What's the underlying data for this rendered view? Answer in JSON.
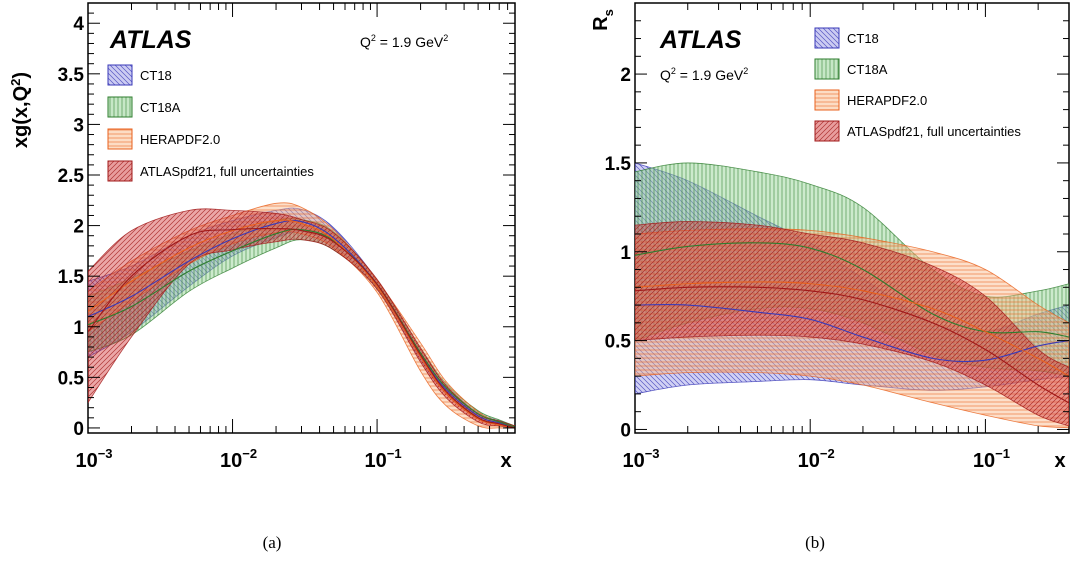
{
  "series_styles": [
    {
      "name": "CT18",
      "color": "#3a3ab8",
      "fill": "#9a9ae6",
      "pattern": "backslash"
    },
    {
      "name": "CT18A",
      "color": "#2e7d2e",
      "fill": "#8ed08e",
      "pattern": "vertical"
    },
    {
      "name": "HERAPDF2.0",
      "color": "#e8601c",
      "fill": "#f9b98a",
      "pattern": "horizontal"
    },
    {
      "name": "ATLASpdf21, full uncertainties",
      "color": "#a01818",
      "fill": "#d23c3c",
      "pattern": "slash"
    }
  ],
  "chart_data": [
    {
      "type": "area",
      "panel_label": "(a)",
      "experiment": "ATLAS",
      "q2_label": {
        "main": "Q",
        "sup1": "2",
        "mid": " = 1.9 GeV",
        "sup2": "2"
      },
      "ylabel": {
        "pre": "xg(x,Q",
        "sup": "2",
        "post": ")"
      },
      "xlabel": "x",
      "xscale": "log",
      "xlim": [
        0.001,
        0.9
      ],
      "ylim": [
        -0.05,
        4.2
      ],
      "yticks": [
        "0",
        "0.5",
        "1",
        "1.5",
        "2",
        "2.5",
        "3",
        "3.5",
        "4"
      ],
      "yticks_values": [
        0,
        0.5,
        1,
        1.5,
        2,
        2.5,
        3,
        3.5,
        4
      ],
      "xticks": [
        {
          "base": "10",
          "exp": "−3",
          "value": 0.001
        },
        {
          "base": "10",
          "exp": "−2",
          "value": 0.01
        },
        {
          "base": "10",
          "exp": "−1",
          "value": 0.1
        }
      ],
      "legend": [
        "CT18",
        "CT18A",
        "HERAPDF2.0",
        "ATLASpdf21, full uncertainties"
      ],
      "legend_position": "top-left",
      "x": [
        0.001,
        0.002,
        0.005,
        0.01,
        0.02,
        0.03,
        0.05,
        0.1,
        0.2,
        0.3,
        0.5,
        0.7,
        0.9
      ],
      "series": [
        {
          "name": "CT18",
          "center": [
            1.1,
            1.3,
            1.65,
            1.87,
            2.02,
            2.04,
            1.88,
            1.42,
            0.72,
            0.38,
            0.12,
            0.05,
            0.01
          ],
          "lower": [
            0.7,
            0.95,
            1.4,
            1.7,
            1.88,
            1.94,
            1.8,
            1.38,
            0.67,
            0.34,
            0.09,
            0.03,
            0.0
          ],
          "upper": [
            1.45,
            1.6,
            1.9,
            2.05,
            2.15,
            2.16,
            1.98,
            1.46,
            0.77,
            0.42,
            0.15,
            0.07,
            0.02
          ]
        },
        {
          "name": "CT18A",
          "center": [
            1.02,
            1.2,
            1.55,
            1.75,
            1.92,
            1.96,
            1.85,
            1.42,
            0.74,
            0.4,
            0.14,
            0.06,
            0.01
          ],
          "lower": [
            0.75,
            0.92,
            1.35,
            1.58,
            1.78,
            1.86,
            1.76,
            1.38,
            0.7,
            0.36,
            0.11,
            0.04,
            0.0
          ],
          "upper": [
            1.3,
            1.48,
            1.75,
            1.92,
            2.05,
            2.06,
            1.94,
            1.46,
            0.79,
            0.44,
            0.17,
            0.08,
            0.02
          ]
        },
        {
          "name": "HERAPDF2.0",
          "center": [
            1.15,
            1.45,
            1.78,
            1.95,
            2.05,
            2.02,
            1.86,
            1.4,
            0.7,
            0.34,
            0.09,
            0.03,
            0.0
          ],
          "lower": [
            0.95,
            1.25,
            1.62,
            1.82,
            1.93,
            1.92,
            1.78,
            1.34,
            0.56,
            0.22,
            0.02,
            0.0,
            0.0
          ],
          "upper": [
            1.35,
            1.65,
            1.95,
            2.1,
            2.22,
            2.18,
            1.96,
            1.46,
            0.84,
            0.46,
            0.16,
            0.06,
            0.02
          ]
        },
        {
          "name": "ATLASpdf21, full uncertainties",
          "center": [
            0.95,
            1.5,
            1.9,
            1.96,
            1.97,
            1.95,
            1.84,
            1.42,
            0.72,
            0.36,
            0.1,
            0.04,
            0.0
          ],
          "lower": [
            0.25,
            0.9,
            1.62,
            1.76,
            1.84,
            1.86,
            1.76,
            1.37,
            0.65,
            0.3,
            0.06,
            0.02,
            0.0
          ],
          "upper": [
            1.55,
            1.95,
            2.15,
            2.15,
            2.12,
            2.06,
            1.93,
            1.47,
            0.79,
            0.42,
            0.14,
            0.07,
            0.02
          ]
        }
      ]
    },
    {
      "type": "area",
      "panel_label": "(b)",
      "experiment": "ATLAS",
      "q2_label": {
        "main": "Q",
        "sup1": "2",
        "mid": " = 1.9 GeV",
        "sup2": "2"
      },
      "ylabel": {
        "pre": "R",
        "sub": "s"
      },
      "xlabel": "x",
      "xscale": "log",
      "xlim": [
        0.001,
        0.3
      ],
      "ylim": [
        -0.02,
        2.4
      ],
      "yticks": [
        "0",
        "0.5",
        "1",
        "1.5",
        "2"
      ],
      "yticks_values": [
        0,
        0.5,
        1,
        1.5,
        2
      ],
      "xticks": [
        {
          "base": "10",
          "exp": "−3",
          "value": 0.001
        },
        {
          "base": "10",
          "exp": "−2",
          "value": 0.01
        },
        {
          "base": "10",
          "exp": "−1",
          "value": 0.1
        }
      ],
      "legend": [
        "CT18",
        "CT18A",
        "HERAPDF2.0",
        "ATLASpdf21, full uncertainties"
      ],
      "legend_position": "top-right",
      "x": [
        0.001,
        0.002,
        0.005,
        0.01,
        0.02,
        0.05,
        0.1,
        0.2,
        0.3
      ],
      "series": [
        {
          "name": "CT18",
          "center": [
            0.7,
            0.7,
            0.66,
            0.62,
            0.52,
            0.4,
            0.39,
            0.47,
            0.5
          ],
          "lower": [
            0.2,
            0.25,
            0.27,
            0.28,
            0.25,
            0.22,
            0.24,
            0.28,
            0.3
          ],
          "upper": [
            1.5,
            1.4,
            1.2,
            1.05,
            0.85,
            0.6,
            0.55,
            0.65,
            0.7
          ]
        },
        {
          "name": "CT18A",
          "center": [
            0.98,
            1.03,
            1.05,
            1.02,
            0.9,
            0.65,
            0.55,
            0.55,
            0.52
          ],
          "lower": [
            0.5,
            0.6,
            0.68,
            0.68,
            0.6,
            0.42,
            0.35,
            0.33,
            0.3
          ],
          "upper": [
            1.45,
            1.5,
            1.45,
            1.38,
            1.25,
            0.9,
            0.75,
            0.78,
            0.82
          ]
        },
        {
          "name": "HERAPDF2.0",
          "center": [
            0.8,
            0.82,
            0.83,
            0.82,
            0.78,
            0.68,
            0.55,
            0.4,
            0.3
          ],
          "lower": [
            0.3,
            0.32,
            0.32,
            0.3,
            0.25,
            0.15,
            0.08,
            0.02,
            0.01
          ],
          "upper": [
            1.1,
            1.12,
            1.13,
            1.12,
            1.08,
            1.0,
            0.9,
            0.7,
            0.6
          ]
        },
        {
          "name": "ATLASpdf21, full uncertainties",
          "center": [
            0.78,
            0.8,
            0.8,
            0.78,
            0.73,
            0.6,
            0.45,
            0.25,
            0.15
          ],
          "lower": [
            0.5,
            0.52,
            0.53,
            0.52,
            0.48,
            0.38,
            0.25,
            0.08,
            0.02
          ],
          "upper": [
            1.15,
            1.17,
            1.15,
            1.1,
            1.05,
            0.92,
            0.75,
            0.45,
            0.35
          ]
        }
      ]
    }
  ]
}
